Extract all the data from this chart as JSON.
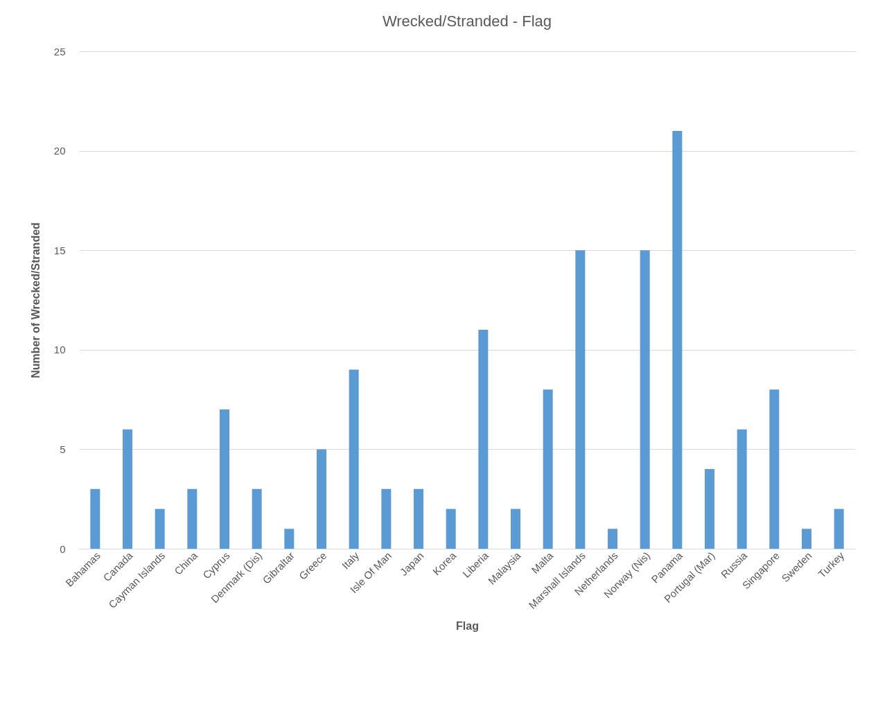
{
  "chart_data": {
    "type": "bar",
    "title": "Wrecked/Stranded - Flag",
    "xlabel": "Flag",
    "ylabel": "Number of Wrecked/Stranded",
    "categories": [
      "Bahamas",
      "Canada",
      "Cayman Islands",
      "China",
      "Cyprus",
      "Denmark (Dis)",
      "Gibraltar",
      "Greece",
      "Italy",
      "Isle Of Man",
      "Japan",
      "Korea",
      "Liberia",
      "Malaysia",
      "Malta",
      "Marshall Islands",
      "Netherlands",
      "Norway (Nis)",
      "Panama",
      "Portugal (Mar)",
      "Russia",
      "Singapore",
      "Sweden",
      "Turkey"
    ],
    "values": [
      3,
      6,
      2,
      3,
      7,
      3,
      1,
      5,
      9,
      3,
      3,
      2,
      11,
      2,
      8,
      15,
      1,
      15,
      21,
      4,
      6,
      8,
      1,
      2
    ],
    "color": "#5b9bd5",
    "ylim": [
      0,
      25
    ],
    "yticks": [
      0,
      5,
      10,
      15,
      20,
      25
    ],
    "grid": "y"
  }
}
